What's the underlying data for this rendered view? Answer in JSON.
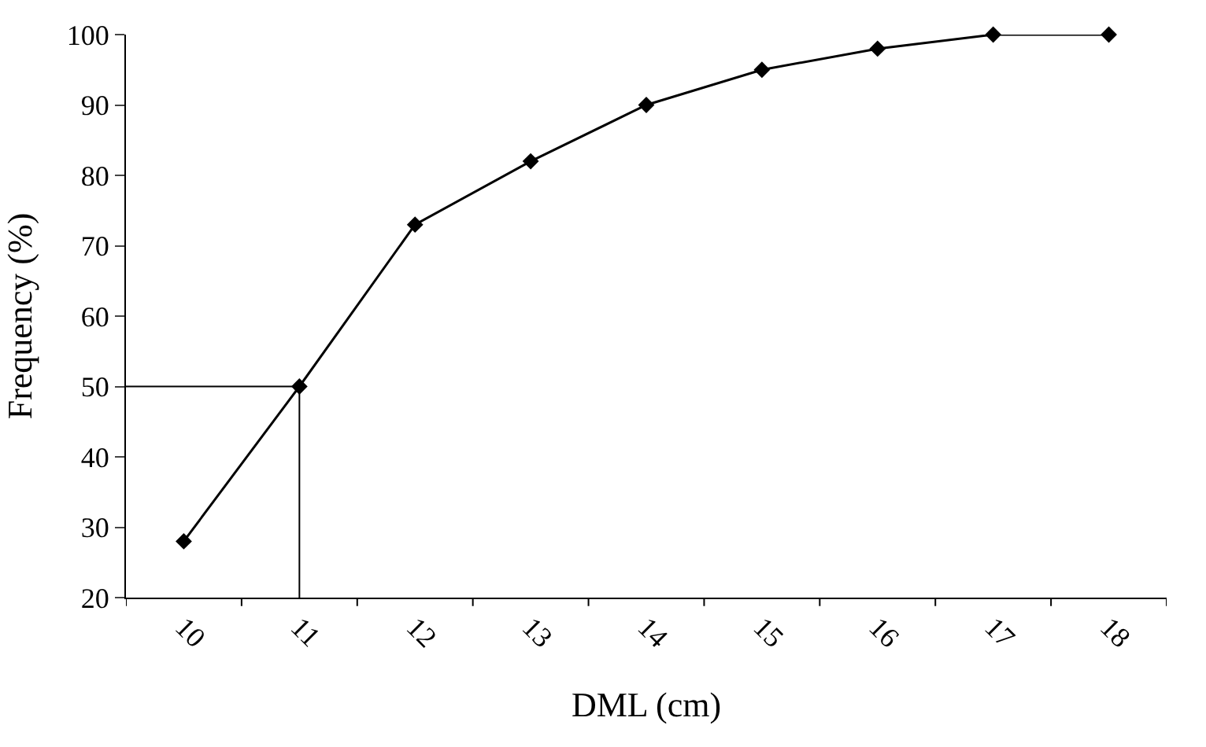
{
  "chart_data": {
    "type": "line",
    "xlabel": "DML (cm)",
    "ylabel": "Frequency (%)",
    "categories": [
      "10",
      "11",
      "12",
      "13",
      "14",
      "15",
      "16",
      "17",
      "18"
    ],
    "series": [
      {
        "color": "#000000",
        "values": [
          28,
          50,
          73,
          82,
          90,
          95,
          98,
          100,
          100
        ]
      }
    ],
    "ylim": [
      20,
      100
    ],
    "yticks": [
      20,
      30,
      40,
      50,
      60,
      70,
      80,
      90,
      100
    ],
    "ref_lines": [
      {
        "axis": "y",
        "value": 50,
        "color": "#000000"
      },
      {
        "axis": "x",
        "value": "11",
        "color": "#000000"
      }
    ],
    "legend": false,
    "marker": "diamond",
    "line_style": "solid"
  }
}
